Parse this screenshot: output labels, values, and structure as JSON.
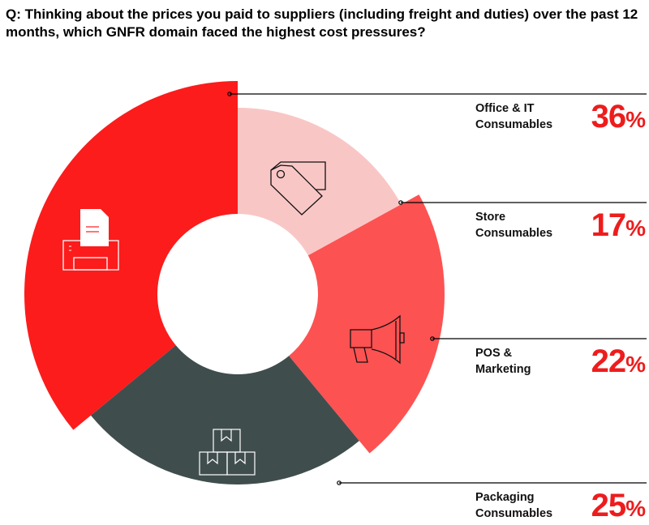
{
  "question": "Q: Thinking about the prices you paid to suppliers (including freight and duties) over the past 12 months, which GNFR domain faced the highest cost pressures?",
  "chart_data": {
    "type": "pie",
    "variant": "donut",
    "title": "Q: Thinking about the prices you paid to suppliers (including freight and duties) over the past 12 months, which GNFR domain faced the highest cost pressures?",
    "categories": [
      "Office & IT Consumables",
      "Store Consumables",
      "POS & Marketing",
      "Packaging Consumables"
    ],
    "values": [
      36,
      17,
      22,
      25
    ],
    "unit": "%",
    "colors": [
      "#fc1c1c",
      "#f9c6c6",
      "#fd5252",
      "#404d4d"
    ],
    "icons": [
      "printer-icon",
      "price-tag-icon",
      "megaphone-icon",
      "boxes-icon"
    ],
    "legend_position": "right"
  },
  "labels": [
    {
      "line1": "Office & IT",
      "line2": "Consumables",
      "value": "36",
      "unit": "%"
    },
    {
      "line1": "Store",
      "line2": "Consumables",
      "value": "17",
      "unit": "%"
    },
    {
      "line1": "POS &",
      "line2": "Marketing",
      "value": "22",
      "unit": "%"
    },
    {
      "line1": "Packaging",
      "line2": "Consumables",
      "value": "25",
      "unit": "%"
    }
  ]
}
